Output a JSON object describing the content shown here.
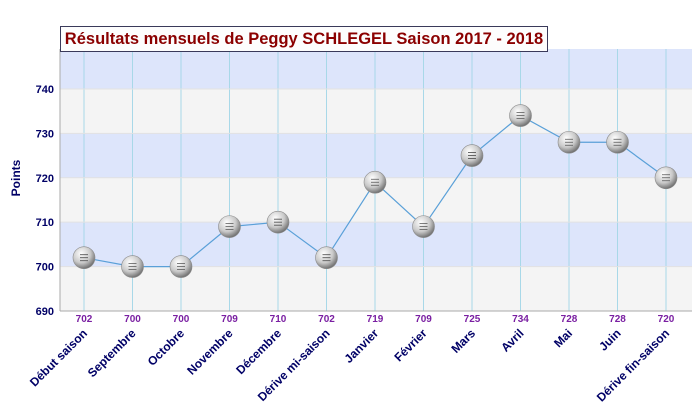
{
  "chart_data": {
    "type": "line",
    "title": "Résultats mensuels de Peggy SCHLEGEL Saison 2017 - 2018",
    "xlabel": "",
    "ylabel": "Points",
    "ylim": [
      690,
      749
    ],
    "yticks": [
      690,
      700,
      710,
      720,
      730,
      740
    ],
    "grid": true,
    "categories": [
      "Début saison",
      "Septembre",
      "Octobre",
      "Novembre",
      "Décembre",
      "Dérive mi-saison",
      "Janvier",
      "Février",
      "Mars",
      "Avril",
      "Mai",
      "Juin",
      "Dérive fin-saison"
    ],
    "values": [
      702,
      700,
      700,
      709,
      710,
      702,
      719,
      709,
      725,
      734,
      728,
      728,
      720
    ],
    "value_labels": [
      "702",
      "700",
      "700",
      "709",
      "710",
      "702",
      "719",
      "709",
      "725",
      "734",
      "728",
      "728",
      "720"
    ]
  },
  "colors": {
    "title_text": "#8b0000",
    "axis_text": "#000066",
    "value_label": "#7a1fa2",
    "line": "#5aa0d8",
    "band_blue": "#dde5fb",
    "band_grey": "#f4f4f4",
    "vgrid": "#a8d8e8"
  },
  "marker_icon": "ball-marker-icon"
}
